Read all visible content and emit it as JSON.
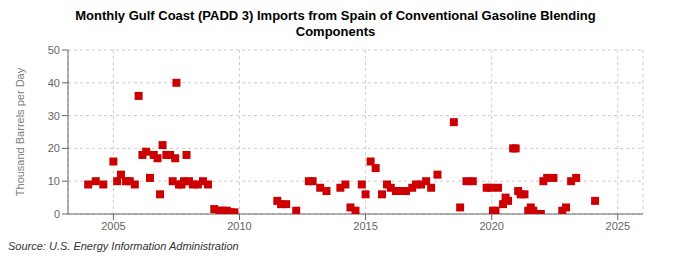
{
  "chart_data": {
    "type": "scatter",
    "title": "Monthly Gulf Coast (PADD 3) Imports from Spain of Conventional Gasoline Blending\nComponents",
    "y_label": "Thousand Barrels per Day",
    "annotations": [
      "Source: U.S. Energy Information Administration"
    ],
    "color": "#cc0000",
    "marker": "square",
    "grid": true,
    "xlim": [
      2003.2,
      2026.0
    ],
    "ylim": [
      0,
      50
    ],
    "xticks": [
      2005,
      2010,
      2015,
      2020,
      2025
    ],
    "yticks": [
      0,
      10,
      20,
      30,
      40,
      50
    ],
    "x": [
      2004.0,
      2004.3,
      2004.6,
      2005.0,
      2005.15,
      2005.3,
      2005.5,
      2005.65,
      2005.85,
      2006.0,
      2006.15,
      2006.3,
      2006.45,
      2006.6,
      2006.75,
      2006.85,
      2006.95,
      2007.1,
      2007.25,
      2007.35,
      2007.45,
      2007.5,
      2007.6,
      2007.7,
      2007.8,
      2007.9,
      2008.0,
      2008.15,
      2008.35,
      2008.55,
      2008.75,
      2009.0,
      2009.2,
      2009.35,
      2009.5,
      2009.65,
      2009.8,
      2011.5,
      2011.65,
      2011.85,
      2012.25,
      2012.75,
      2012.9,
      2013.2,
      2013.45,
      2014.0,
      2014.2,
      2014.4,
      2014.6,
      2014.85,
      2015.0,
      2015.2,
      2015.4,
      2015.65,
      2015.85,
      2016.0,
      2016.2,
      2016.4,
      2016.6,
      2016.85,
      2017.0,
      2017.2,
      2017.4,
      2017.6,
      2017.85,
      2018.5,
      2018.75,
      2019.0,
      2019.25,
      2019.8,
      2019.95,
      2020.05,
      2020.15,
      2020.25,
      2020.45,
      2020.55,
      2020.65,
      2020.85,
      2020.95,
      2021.05,
      2021.15,
      2021.3,
      2021.45,
      2021.55,
      2021.65,
      2021.8,
      2021.95,
      2022.05,
      2022.2,
      2022.45,
      2022.8,
      2022.95,
      2023.15,
      2023.35,
      2024.1
    ],
    "values": [
      9,
      10,
      9,
      16,
      10,
      12,
      10,
      10,
      9,
      36,
      18,
      19,
      11,
      18,
      17,
      6,
      21,
      18,
      18,
      10,
      17,
      40,
      9,
      9,
      10,
      18,
      10,
      9,
      9,
      10,
      9,
      1.5,
      1,
      1,
      1,
      0.5,
      0.5,
      4,
      3,
      3,
      1,
      10,
      10,
      8,
      7,
      8,
      9,
      2,
      1,
      9,
      6,
      16,
      14,
      6,
      9,
      8,
      7,
      7,
      7,
      8,
      9,
      9,
      10,
      8,
      12,
      28,
      2,
      10,
      10,
      8,
      8,
      1,
      1,
      8,
      3,
      5,
      4,
      20,
      20,
      7,
      6,
      6,
      1,
      2,
      1,
      0,
      0,
      10,
      11,
      11,
      1,
      2,
      10,
      11,
      4
    ]
  }
}
